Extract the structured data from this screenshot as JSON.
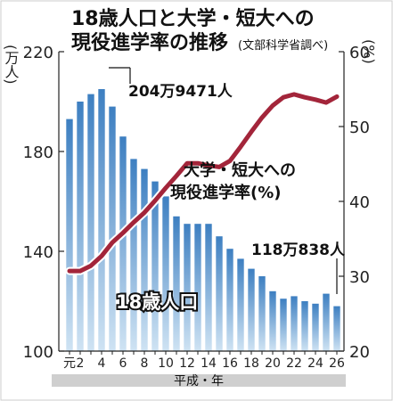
{
  "chart_data": {
    "type": "bar+line",
    "title": "18歳人口と大学・短大への現役進学率の推移",
    "title_line1": "18歳人口と大学・短大への",
    "title_line2": "現役進学率の推移",
    "source": "(文部科学省調べ)",
    "xlabel": "平成・年",
    "left_axis": {
      "unit_label": "(万人)",
      "ylim": [
        100,
        220
      ],
      "ticks": [
        100,
        140,
        180,
        220
      ]
    },
    "right_axis": {
      "unit_label": "(%)",
      "ylim": [
        20,
        60
      ],
      "ticks": [
        20,
        30,
        40,
        50,
        60
      ]
    },
    "categories": [
      "元",
      "2",
      "3",
      "4",
      "5",
      "6",
      "7",
      "8",
      "9",
      "10",
      "11",
      "12",
      "13",
      "14",
      "15",
      "16",
      "17",
      "18",
      "19",
      "20",
      "21",
      "22",
      "23",
      "24",
      "25",
      "26"
    ],
    "tick_labels": [
      "元",
      "2",
      "4",
      "6",
      "8",
      "10",
      "12",
      "14",
      "16",
      "18",
      "20",
      "22",
      "24",
      "26"
    ],
    "series": [
      {
        "name": "18歳人口",
        "kind": "bar",
        "axis": "left",
        "color": "#5a9bd5",
        "values": [
          193,
          200,
          203,
          205,
          198,
          186,
          177,
          173,
          168,
          162,
          154,
          151,
          151,
          151,
          146,
          141,
          137,
          133,
          130,
          124,
          121,
          122,
          120,
          119,
          123,
          118
        ]
      },
      {
        "name": "大学・短大への現役進学率(%)",
        "kind": "line",
        "axis": "right",
        "color": "#a3253a",
        "values": [
          30.7,
          30.7,
          31.4,
          32.7,
          34.5,
          35.8,
          37.2,
          38.5,
          40.1,
          41.8,
          43.4,
          45.1,
          45.1,
          44.8,
          44.6,
          45.4,
          47.3,
          49.3,
          51.2,
          52.8,
          53.9,
          54.3,
          53.9,
          53.6,
          53.2,
          54.0
        ]
      }
    ],
    "annotations": {
      "peak_label": "204万9471人",
      "last_label": "118万838人",
      "bar_series_label": "18歳人口",
      "line_label_line1": "大学・短大への",
      "line_label_line2": "現役進学率(%)"
    },
    "grid": false
  }
}
